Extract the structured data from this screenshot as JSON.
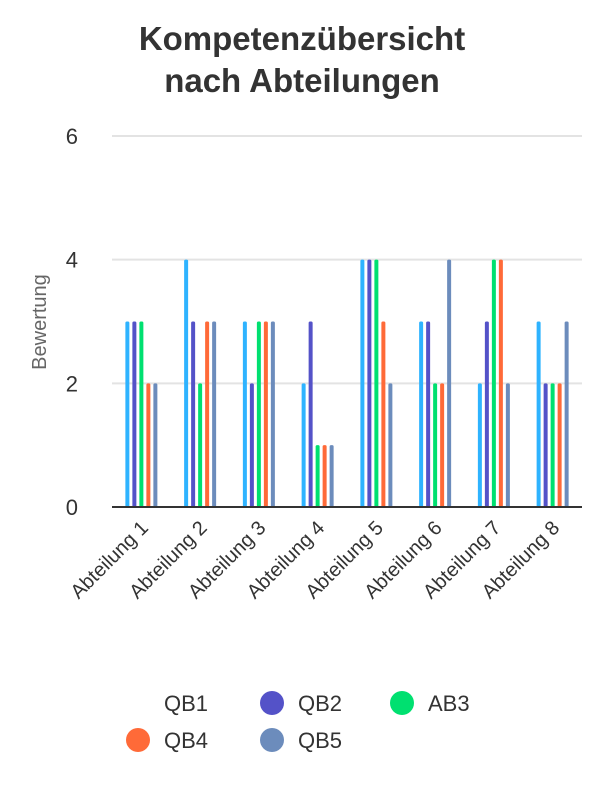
{
  "chart_data": {
    "type": "bar",
    "title": [
      "Kompetenzübersicht",
      "nach Abteilungen"
    ],
    "xlabel": "",
    "ylabel": "Bewertung",
    "ylim": [
      0,
      6
    ],
    "yticks": [
      "0",
      "2",
      "4",
      "6"
    ],
    "grid": true,
    "legend_position": "bottom",
    "categories": [
      "Abteilung 1",
      "Abteilung 2",
      "Abteilung 3",
      "Abteilung 4",
      "Abteilung 5",
      "Abteilung 6",
      "Abteilung 7",
      "Abteilung 8"
    ],
    "series": [
      {
        "name": "QB1",
        "color": "#2eb3ff",
        "legend_color": "#ffffff",
        "values": [
          3,
          4,
          3,
          2,
          4,
          3,
          2,
          3
        ]
      },
      {
        "name": "QB2",
        "color": "#5452c8",
        "legend_color": "#5452c8",
        "values": [
          3,
          3,
          2,
          3,
          4,
          3,
          3,
          2
        ]
      },
      {
        "name": "AB3",
        "color": "#00e070",
        "legend_color": "#00e070",
        "values": [
          3,
          2,
          3,
          1,
          4,
          2,
          4,
          2
        ]
      },
      {
        "name": "QB4",
        "color": "#ff6a38",
        "legend_color": "#ff6a38",
        "values": [
          2,
          3,
          3,
          1,
          3,
          2,
          4,
          2
        ]
      },
      {
        "name": "QB5",
        "color": "#6c8cbc",
        "legend_color": "#6c8cbc",
        "values": [
          2,
          3,
          3,
          1,
          2,
          4,
          2,
          3
        ]
      }
    ]
  }
}
